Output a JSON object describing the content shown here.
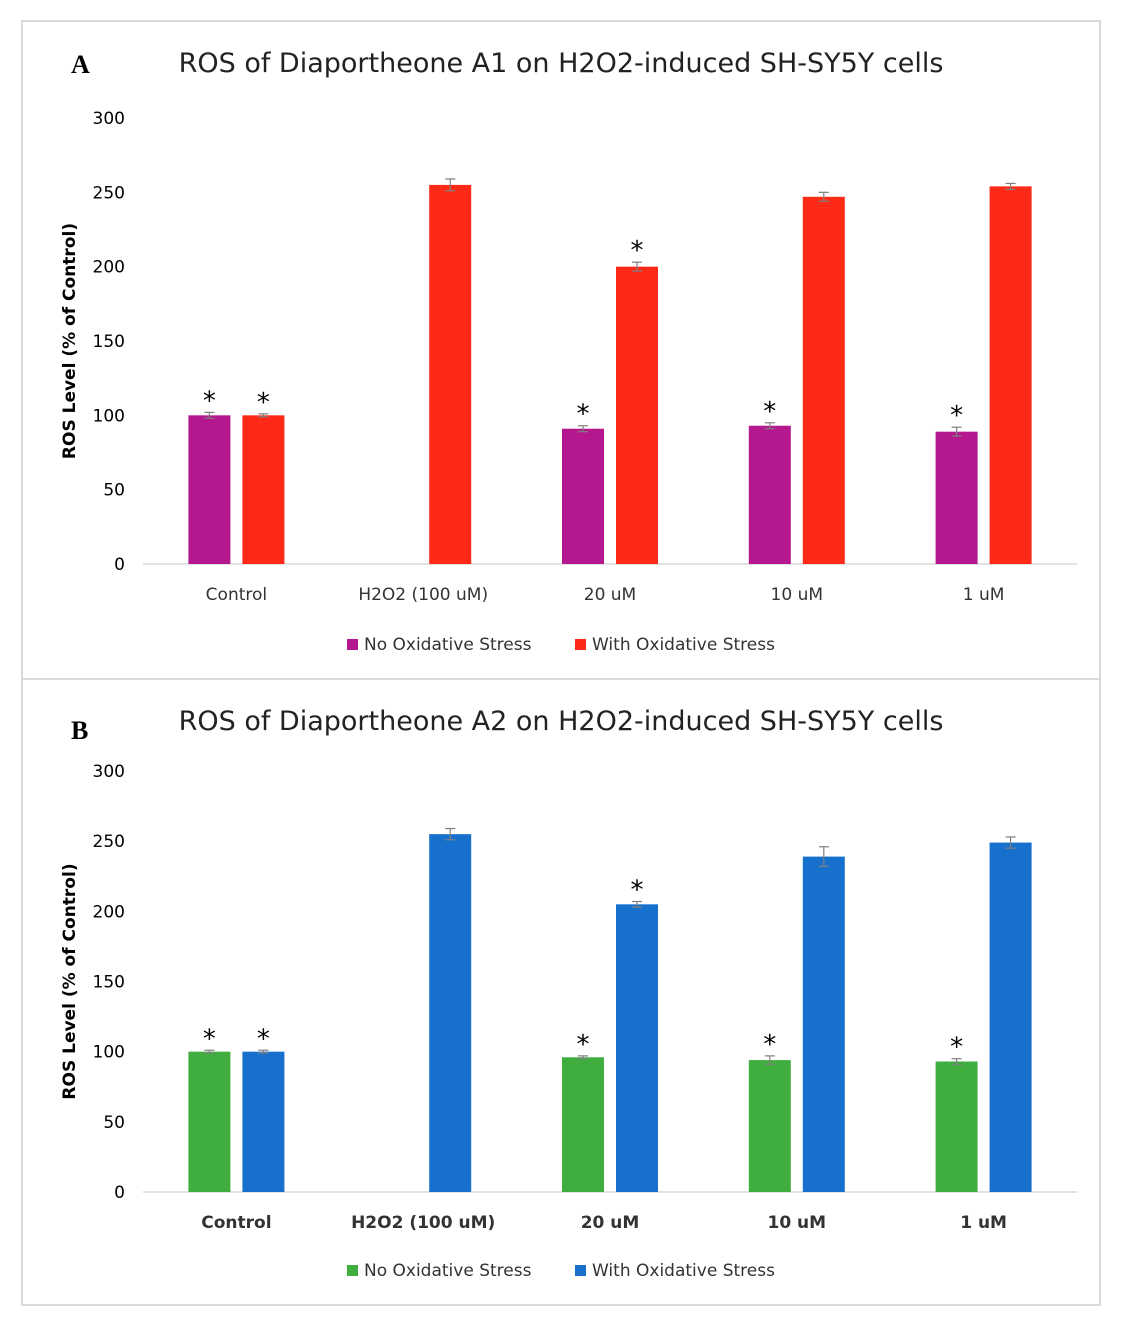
{
  "chart_data": [
    {
      "panel_label": "A",
      "type": "bar",
      "title": "ROS of Diaportheone A1 on H2O2-induced SH-SY5Y cells",
      "ylabel": "ROS Level (% of Control)",
      "xlabel": "",
      "ylim": [
        0,
        300
      ],
      "yticks": [
        "0",
        "50",
        "100",
        "150",
        "200",
        "250",
        "300"
      ],
      "categories": [
        "Control",
        "H2O2 (100 uM)",
        "20 uM",
        "10 uM",
        "1 uM"
      ],
      "grid": false,
      "legend_position": "bottom",
      "series": [
        {
          "name": "No Oxidative Stress",
          "color": "#b5178f",
          "values": [
            100,
            null,
            91,
            93,
            89
          ],
          "errors": [
            2,
            null,
            2,
            2,
            3
          ],
          "significant": [
            true,
            false,
            true,
            true,
            true
          ]
        },
        {
          "name": "With Oxidative Stress",
          "color": "#fe2a17",
          "values": [
            100,
            255,
            200,
            247,
            254
          ],
          "errors": [
            1,
            4,
            3,
            3,
            2
          ],
          "significant": [
            true,
            false,
            true,
            false,
            false
          ]
        }
      ],
      "significance_mark": "*"
    },
    {
      "panel_label": "B",
      "type": "bar",
      "title": "ROS of Diaportheone A2 on H2O2-induced SH-SY5Y cells",
      "ylabel": "ROS Level (% of Control)",
      "xlabel": "",
      "ylim": [
        0,
        300
      ],
      "yticks": [
        "0",
        "50",
        "100",
        "150",
        "200",
        "250",
        "300"
      ],
      "categories": [
        "Control",
        "H2O2 (100 uM)",
        "20 uM",
        "10 uM",
        "1 uM"
      ],
      "grid": false,
      "legend_position": "bottom",
      "series": [
        {
          "name": "No Oxidative Stress",
          "color": "#40ae3f",
          "values": [
            100,
            null,
            96,
            94,
            93
          ],
          "errors": [
            1,
            null,
            1,
            3,
            2
          ],
          "significant": [
            true,
            false,
            true,
            true,
            true
          ]
        },
        {
          "name": "With Oxidative Stress",
          "color": "#1770cc",
          "values": [
            100,
            255,
            205,
            239,
            249
          ],
          "errors": [
            1,
            4,
            2,
            7,
            4
          ],
          "significant": [
            true,
            false,
            true,
            false,
            false
          ]
        }
      ],
      "significance_mark": "*"
    }
  ]
}
